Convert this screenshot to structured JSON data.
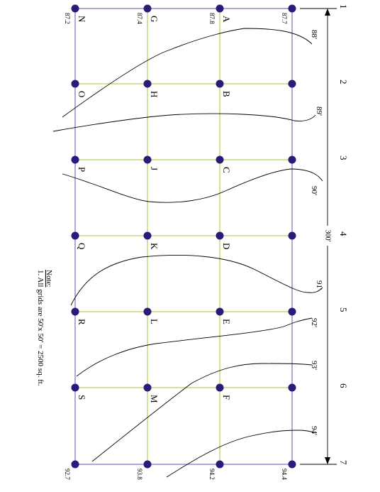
{
  "row_numbers": [
    "1",
    "2",
    "3",
    "4",
    "5",
    "6",
    "7"
  ],
  "column_letters": [
    [
      "A",
      "B",
      "C",
      "D",
      "E",
      "F"
    ],
    [
      "G",
      "H",
      "J",
      "K",
      "L",
      "M"
    ],
    [
      "N",
      "O",
      "P",
      "Q",
      "R",
      "S"
    ]
  ],
  "corner_elevations": {
    "top": [
      "87.2",
      "87.4",
      "87.8",
      "87.7"
    ],
    "bottom": [
      "92.7",
      "93.8",
      "94.2",
      "94.4"
    ]
  },
  "contour_labels": [
    "88'",
    "89'",
    "90'",
    "91'",
    "92'",
    "93'",
    "94'"
  ],
  "dimension": "300'",
  "note": {
    "title": "Note:",
    "text": "1. All grids are 50'x 50' = 2500 sq. ft."
  },
  "colors": {
    "grid": "#99cc33",
    "frame": "#7a6fc0",
    "node": "#2a1a7a",
    "contour": "#000000"
  }
}
